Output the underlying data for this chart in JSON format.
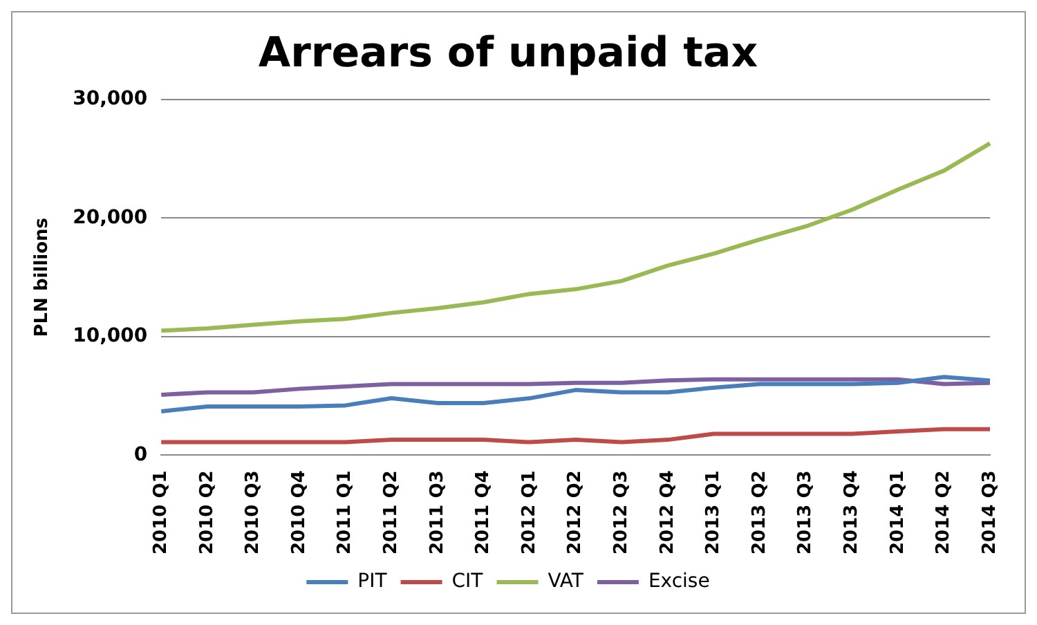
{
  "chart_data": {
    "type": "line",
    "title": "Arrears of unpaid tax",
    "ylabel": "PLN billions",
    "categories": [
      "2010 Q1",
      "2010 Q2",
      "2010 Q3",
      "2010 Q4",
      "2011 Q1",
      "2011 Q2",
      "2011 Q3",
      "2011 Q4",
      "2012 Q1",
      "2012 Q2",
      "2012 Q3",
      "2012 Q4",
      "2013 Q1",
      "2013 Q2",
      "2013 Q3",
      "2013 Q4",
      "2014 Q1",
      "2014 Q2",
      "2014 Q3"
    ],
    "series": [
      {
        "name": "PIT",
        "color": "#4a7ebb",
        "values": [
          3700,
          4100,
          4100,
          4100,
          4200,
          4800,
          4400,
          4400,
          4800,
          5500,
          5300,
          5300,
          5700,
          6000,
          6000,
          6000,
          6100,
          6600,
          6300
        ]
      },
      {
        "name": "CIT",
        "color": "#be4b48",
        "values": [
          1100,
          1100,
          1100,
          1100,
          1100,
          1300,
          1300,
          1300,
          1100,
          1300,
          1100,
          1300,
          1800,
          1800,
          1800,
          1800,
          2000,
          2200,
          2200
        ]
      },
      {
        "name": "VAT",
        "color": "#98b954",
        "values": [
          10500,
          10700,
          11000,
          11300,
          11500,
          12000,
          12400,
          12900,
          13600,
          14000,
          14700,
          16000,
          17000,
          18200,
          19300,
          20700,
          22400,
          24000,
          26300
        ]
      },
      {
        "name": "Excise",
        "color": "#7d60a0",
        "values": [
          5100,
          5300,
          5300,
          5600,
          5800,
          6000,
          6000,
          6000,
          6000,
          6100,
          6100,
          6300,
          6400,
          6400,
          6400,
          6400,
          6400,
          6000,
          6100
        ]
      }
    ],
    "ylim": [
      0,
      30000
    ],
    "yticks": [
      0,
      {
        "value": 10000,
        "label": "10,000"
      },
      {
        "value": 20000,
        "label": "20,000"
      },
      {
        "value": 30000,
        "label": "30,000"
      }
    ],
    "grid": "y",
    "legend": "bottom",
    "marker": "none",
    "line_style": "solid"
  }
}
